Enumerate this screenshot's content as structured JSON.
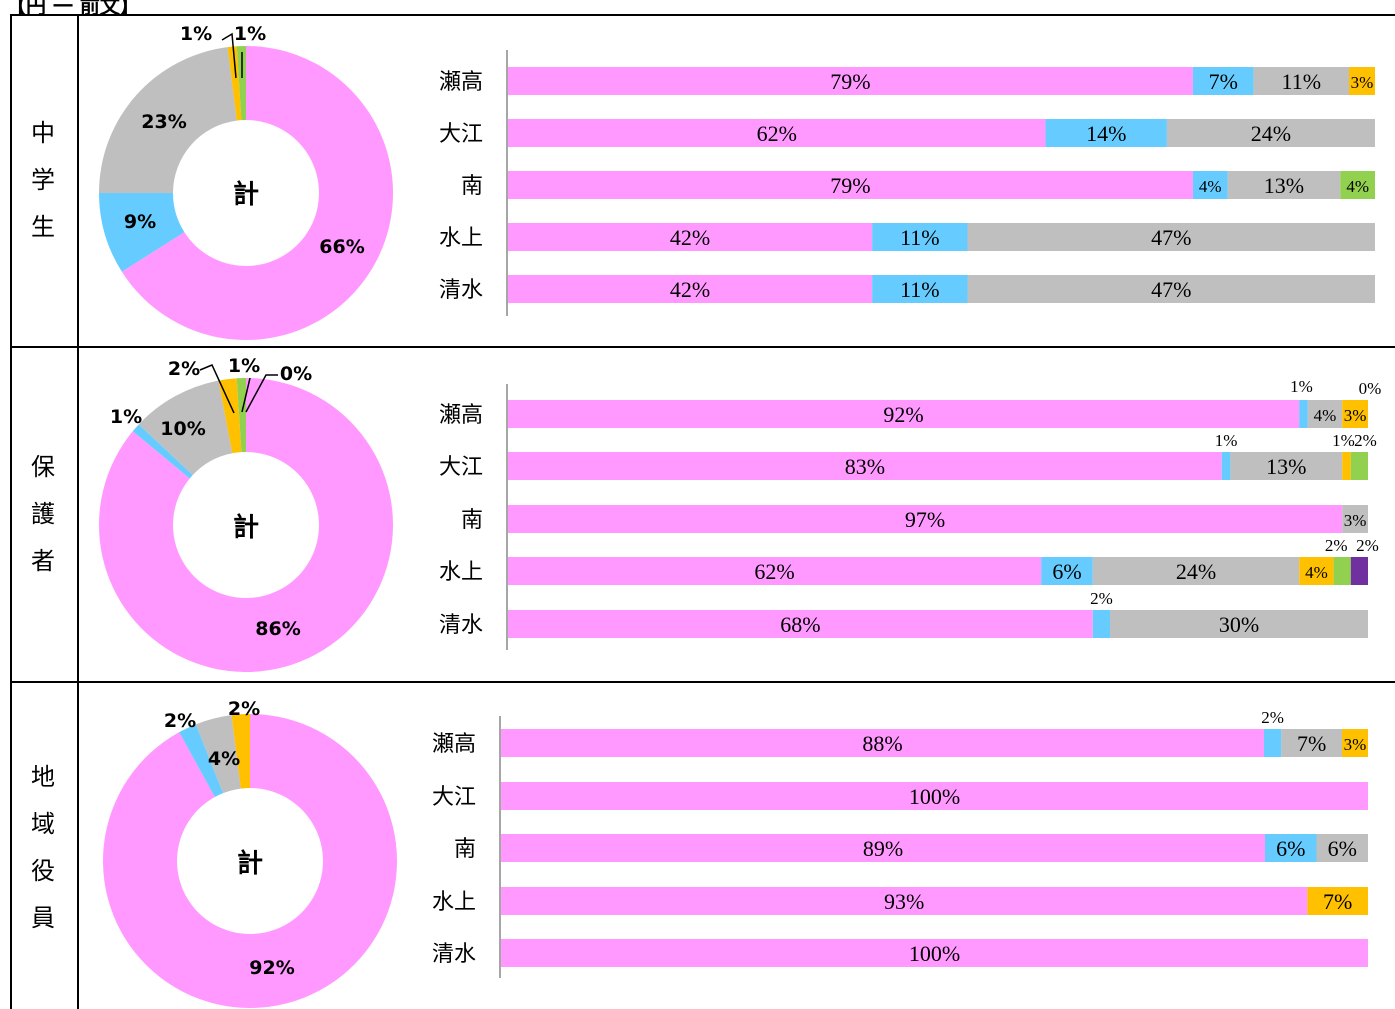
{
  "header": "【円 一 前文】",
  "colors": {
    "pink": "#ff99ff",
    "blue": "#66ccff",
    "gray": "#bfbfbf",
    "orange": "#ffc000",
    "green": "#92d050",
    "purple": "#7030a0"
  },
  "groups": [
    {
      "label": [
        "中",
        "学",
        "生"
      ],
      "donut": {
        "center_label": "計",
        "values": [
          66,
          9,
          23,
          1,
          1
        ],
        "labels": [
          "66%",
          "9%",
          "23%",
          "1%",
          "1%"
        ]
      },
      "bars": {
        "categories": [
          "瀬高",
          "大江",
          "南",
          "水上",
          "清水"
        ],
        "values": [
          [
            79,
            7,
            11,
            3,
            0,
            0
          ],
          [
            62,
            14,
            24,
            0,
            0,
            0
          ],
          [
            79,
            4,
            13,
            0,
            4,
            0
          ],
          [
            42,
            11,
            47,
            0,
            0,
            0
          ],
          [
            42,
            11,
            47,
            0,
            0,
            0
          ]
        ],
        "labels": [
          [
            "79%",
            "7%",
            "11%",
            "3%",
            "",
            ""
          ],
          [
            "62%",
            "14%",
            "24%",
            "",
            "",
            ""
          ],
          [
            "79%",
            "4%",
            "13%",
            "",
            "4%",
            ""
          ],
          [
            "42%",
            "11%",
            "47%",
            "",
            "",
            ""
          ],
          [
            "42%",
            "11%",
            "47%",
            "",
            "",
            ""
          ]
        ]
      }
    },
    {
      "label": [
        "保",
        "護",
        "者"
      ],
      "donut": {
        "center_label": "計",
        "values": [
          86,
          1,
          10,
          2,
          1,
          0
        ],
        "labels": [
          "86%",
          "1%",
          "10%",
          "2%",
          "1%",
          "0%"
        ]
      },
      "bars": {
        "categories": [
          "瀬高",
          "大江",
          "南",
          "水上",
          "清水"
        ],
        "values": [
          [
            92,
            1,
            4,
            3,
            0,
            0
          ],
          [
            83,
            1,
            13,
            1,
            2,
            0
          ],
          [
            97,
            0,
            3,
            0,
            0,
            0
          ],
          [
            62,
            6,
            24,
            4,
            2,
            2
          ],
          [
            68,
            2,
            30,
            0,
            0,
            0
          ]
        ],
        "labels": [
          [
            "92%",
            "1%",
            "4%",
            "3%",
            "0%",
            ""
          ],
          [
            "83%",
            "1%",
            "13%",
            "1%",
            "2%",
            ""
          ],
          [
            "97%",
            "",
            "3%",
            "",
            "",
            ""
          ],
          [
            "62%",
            "6%",
            "24%",
            "4%",
            "2%",
            "2%"
          ],
          [
            "68%",
            "2%",
            "30%",
            "",
            "",
            ""
          ]
        ]
      }
    },
    {
      "label": [
        "地",
        "域",
        "役",
        "員"
      ],
      "donut": {
        "center_label": "計",
        "values": [
          92,
          2,
          4,
          2
        ],
        "labels": [
          "92%",
          "2%",
          "4%",
          "2%"
        ]
      },
      "bars": {
        "categories": [
          "瀬高",
          "大江",
          "南",
          "水上",
          "清水"
        ],
        "values": [
          [
            88,
            2,
            7,
            3,
            0,
            0
          ],
          [
            100,
            0,
            0,
            0,
            0,
            0
          ],
          [
            89,
            6,
            6,
            0,
            0,
            0
          ],
          [
            93,
            0,
            0,
            7,
            0,
            0
          ],
          [
            100,
            0,
            0,
            0,
            0,
            0
          ]
        ],
        "labels": [
          [
            "88%",
            "2%",
            "7%",
            "3%",
            "",
            ""
          ],
          [
            "100%",
            "",
            "",
            "",
            "",
            ""
          ],
          [
            "89%",
            "6%",
            "6%",
            "",
            "",
            ""
          ],
          [
            "93%",
            "",
            "",
            "7%",
            "",
            ""
          ],
          [
            "100%",
            "",
            "",
            "",
            "",
            ""
          ]
        ]
      }
    }
  ],
  "chart_data": [
    {
      "type": "pie",
      "group": "中学生",
      "title": "計",
      "values": [
        66,
        9,
        23,
        1,
        1
      ]
    },
    {
      "type": "bar",
      "group": "中学生",
      "categories": [
        "瀬高",
        "大江",
        "南",
        "水上",
        "清水"
      ],
      "stacked": true,
      "orientation": "horizontal",
      "series": [
        {
          "values": [
            79,
            62,
            79,
            42,
            42
          ]
        },
        {
          "values": [
            7,
            14,
            4,
            11,
            11
          ]
        },
        {
          "values": [
            11,
            24,
            13,
            47,
            47
          ]
        },
        {
          "values": [
            3,
            0,
            0,
            0,
            0
          ]
        },
        {
          "values": [
            0,
            0,
            4,
            0,
            0
          ]
        }
      ]
    },
    {
      "type": "pie",
      "group": "保護者",
      "title": "計",
      "values": [
        86,
        1,
        10,
        2,
        1,
        0
      ]
    },
    {
      "type": "bar",
      "group": "保護者",
      "categories": [
        "瀬高",
        "大江",
        "南",
        "水上",
        "清水"
      ],
      "stacked": true,
      "orientation": "horizontal",
      "series": [
        {
          "values": [
            92,
            83,
            97,
            62,
            68
          ]
        },
        {
          "values": [
            1,
            1,
            0,
            6,
            2
          ]
        },
        {
          "values": [
            4,
            13,
            3,
            24,
            30
          ]
        },
        {
          "values": [
            3,
            1,
            0,
            4,
            0
          ]
        },
        {
          "values": [
            0,
            2,
            0,
            2,
            0
          ]
        },
        {
          "values": [
            0,
            0,
            0,
            2,
            0
          ]
        }
      ]
    },
    {
      "type": "pie",
      "group": "地域役員",
      "title": "計",
      "values": [
        92,
        2,
        4,
        2
      ]
    },
    {
      "type": "bar",
      "group": "地域役員",
      "categories": [
        "瀬高",
        "大江",
        "南",
        "水上",
        "清水"
      ],
      "stacked": true,
      "orientation": "horizontal",
      "series": [
        {
          "values": [
            88,
            100,
            89,
            93,
            100
          ]
        },
        {
          "values": [
            2,
            0,
            6,
            0,
            0
          ]
        },
        {
          "values": [
            7,
            0,
            6,
            0,
            0
          ]
        },
        {
          "values": [
            3,
            0,
            0,
            7,
            0
          ]
        }
      ]
    }
  ]
}
